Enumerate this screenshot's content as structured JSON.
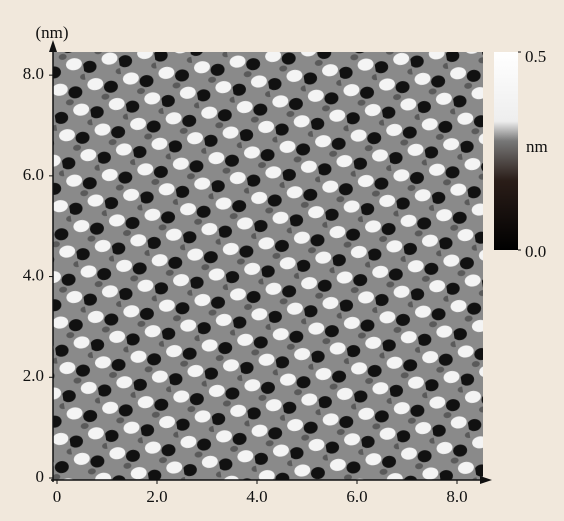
{
  "chart_data": {
    "type": "image",
    "xlim": [
      0,
      8.4
    ],
    "ylim": [
      0,
      8.4
    ],
    "xticks": [
      0,
      {
        "value": 2,
        "label": "2.0"
      },
      {
        "value": 4,
        "label": "4.0"
      },
      {
        "value": 6,
        "label": "6.0"
      },
      {
        "value": 8,
        "label": "8.0"
      }
    ],
    "yticks": [
      0,
      {
        "value": 2,
        "label": "2.0"
      },
      {
        "value": 4,
        "label": "4.0"
      },
      {
        "value": 6,
        "label": "6.0"
      },
      {
        "value": 8,
        "label": "8.0"
      }
    ],
    "y_unit": "(nm)",
    "colorbar": {
      "label": "nm",
      "clim": [
        0,
        0.5
      ],
      "ticks": [
        {
          "value": 0,
          "label": "0.0"
        },
        {
          "value": 0.5,
          "label": "0.5"
        }
      ]
    }
  }
}
